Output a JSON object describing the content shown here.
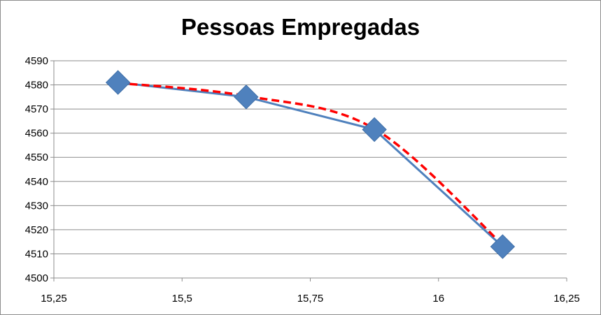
{
  "chart_data": {
    "type": "line",
    "title": "Pessoas Empregadas",
    "xlabel": "",
    "ylabel": "",
    "xlim": [
      15.25,
      16.25
    ],
    "ylim": [
      4500,
      4590
    ],
    "x_ticks": [
      15.25,
      15.5,
      15.75,
      16,
      16.25
    ],
    "x_tick_labels": [
      "15,25",
      "15,5",
      "15,75",
      "16",
      "16,25"
    ],
    "y_ticks": [
      4500,
      4510,
      4520,
      4530,
      4540,
      4550,
      4560,
      4570,
      4580,
      4590
    ],
    "y_tick_labels": [
      "4500",
      "4510",
      "4520",
      "4530",
      "4540",
      "4550",
      "4560",
      "4570",
      "4580",
      "4590"
    ],
    "grid": "horizontal",
    "legend": "none",
    "series": [
      {
        "style": "solid-line-diamond-markers",
        "color": "#4f81bd",
        "x": [
          15.375,
          15.625,
          15.875,
          16.125
        ],
        "y": [
          4581,
          4575,
          4561.5,
          4513
        ]
      },
      {
        "style": "dashed-trendline",
        "color": "#ff0000",
        "x": [
          15.375,
          15.625,
          15.875,
          16.125
        ],
        "y": [
          4580.8,
          4575.4,
          4561.8,
          4513.8
        ]
      }
    ]
  }
}
